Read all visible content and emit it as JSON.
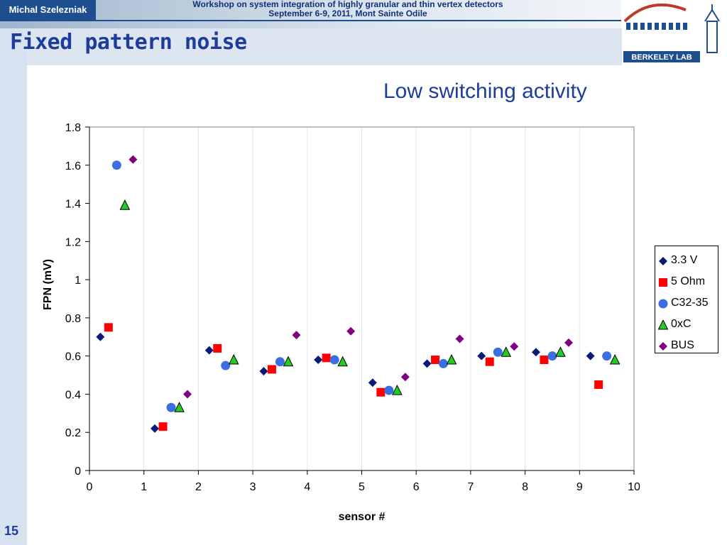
{
  "header": {
    "author": "Michal Szelezniak",
    "workshop_line1": "Workshop on system integration of highly granular and thin vertex detectors",
    "workshop_line2": "September 6-9, 2011, Mont Sainte Odile",
    "logo_text": "BERKELEY LAB"
  },
  "slide": {
    "title": "Fixed pattern noise",
    "subtitle": "Low switching activity",
    "page_number": "15"
  },
  "colors": {
    "navy": "#1d3c9c",
    "series_3_3V": "#0a1a7a",
    "series_5Ohm": "#ff0000",
    "series_C32_35": "#3b6fe0",
    "series_0xC": "#22cc22",
    "series_BUS": "#800080"
  },
  "chart_data": {
    "type": "scatter",
    "title": "",
    "xlabel": "sensor #",
    "ylabel": "FPN (mV)",
    "xlim": [
      0,
      10
    ],
    "ylim": [
      0,
      1.8
    ],
    "xticks": [
      "0",
      "1",
      "2",
      "3",
      "4",
      "5",
      "6",
      "7",
      "8",
      "9",
      "10"
    ],
    "yticks": [
      "0",
      "0.2",
      "0.4",
      "0.6",
      "0.8",
      "1",
      "1.2",
      "1.4",
      "1.6",
      "1.8"
    ],
    "grid": "vertical",
    "legend_position": "right",
    "series": [
      {
        "name": "3.3 V",
        "marker": "diamond",
        "color": "#0a1a7a",
        "x": [
          0.2,
          1.2,
          2.2,
          3.2,
          4.2,
          5.2,
          6.2,
          7.2,
          8.2,
          9.2
        ],
        "y": [
          0.7,
          0.22,
          0.63,
          0.52,
          0.58,
          0.46,
          0.56,
          0.6,
          0.62,
          0.6
        ]
      },
      {
        "name": "5 Ohm",
        "marker": "square",
        "color": "#ff0000",
        "x": [
          0.35,
          1.35,
          2.35,
          3.35,
          4.35,
          5.35,
          6.35,
          7.35,
          8.35,
          9.35
        ],
        "y": [
          0.75,
          0.23,
          0.64,
          0.53,
          0.59,
          0.41,
          0.58,
          0.57,
          0.58,
          0.45
        ]
      },
      {
        "name": "C32-35",
        "marker": "circle",
        "color": "#3b6fe0",
        "x": [
          0.5,
          1.5,
          2.5,
          3.5,
          4.5,
          5.5,
          6.5,
          7.5,
          8.5,
          9.5
        ],
        "y": [
          1.6,
          0.33,
          0.55,
          0.57,
          0.58,
          0.42,
          0.56,
          0.62,
          0.6,
          0.6
        ]
      },
      {
        "name": "0xC",
        "marker": "triangle",
        "color": "#22cc22",
        "x": [
          0.65,
          1.65,
          2.65,
          3.65,
          4.65,
          5.65,
          6.65,
          7.65,
          8.65,
          9.65
        ],
        "y": [
          1.39,
          0.33,
          0.58,
          0.57,
          0.57,
          0.42,
          0.58,
          0.62,
          0.62,
          0.58
        ]
      },
      {
        "name": "BUS",
        "marker": "diamond",
        "color": "#800080",
        "x": [
          0.8,
          1.8,
          3.8,
          4.8,
          5.8,
          6.8,
          7.8,
          8.8
        ],
        "y": [
          1.63,
          0.4,
          0.71,
          0.73,
          0.49,
          0.69,
          0.65,
          0.67
        ]
      }
    ]
  }
}
